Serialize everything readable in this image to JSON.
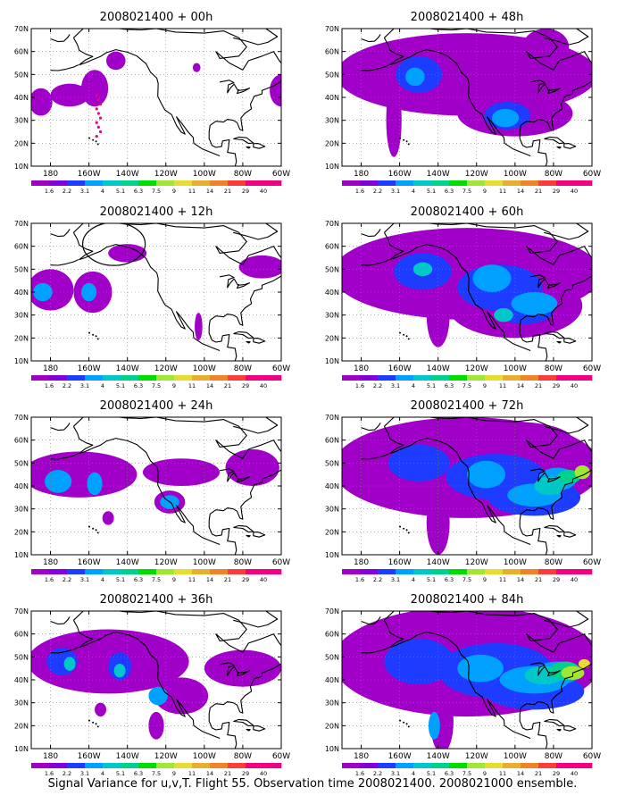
{
  "figure": {
    "caption": "Signal Variance for u,v,T. Flight 55. Observation time 2008021400. 2008021000 ensemble."
  },
  "axes": {
    "lat_ticks": [
      "70N",
      "60N",
      "50N",
      "40N",
      "30N",
      "20N",
      "10N"
    ],
    "lon_ticks": [
      "180",
      "160W",
      "140W",
      "120W",
      "100W",
      "80W",
      "60W"
    ],
    "lat_range": [
      10,
      70
    ],
    "lon_range": [
      -190,
      -60
    ],
    "grid": "dotted"
  },
  "colorbar": {
    "labels": [
      "1.6",
      "2.2",
      "3.1",
      "4",
      "5.1",
      "6.3",
      "7.5",
      "9",
      "11",
      "14",
      "21",
      "29",
      "40"
    ],
    "colors": [
      "#a000c8",
      "#8200dc",
      "#1e3cff",
      "#00a0ff",
      "#00c8c8",
      "#00d28c",
      "#00dc00",
      "#a0e632",
      "#e6dc32",
      "#e6af2d",
      "#f08228",
      "#fa3c3c",
      "#f00082"
    ]
  },
  "panels": [
    {
      "title": "2008021400 + 00h",
      "column": "left",
      "row": 0,
      "circle": false,
      "level": 0
    },
    {
      "title": "2008021400 + 12h",
      "column": "left",
      "row": 1,
      "circle": true,
      "level": 1
    },
    {
      "title": "2008021400 + 24h",
      "column": "left",
      "row": 2,
      "circle": false,
      "level": 2
    },
    {
      "title": "2008021400 + 36h",
      "column": "left",
      "row": 3,
      "circle": false,
      "level": 3
    },
    {
      "title": "2008021400 + 48h",
      "column": "right",
      "row": 0,
      "circle": false,
      "level": 4
    },
    {
      "title": "2008021400 + 60h",
      "column": "right",
      "row": 1,
      "circle": false,
      "level": 5
    },
    {
      "title": "2008021400 + 72h",
      "column": "right",
      "row": 2,
      "circle": false,
      "level": 6
    },
    {
      "title": "2008021400 + 84h",
      "column": "right",
      "row": 3,
      "circle": false,
      "level": 7
    }
  ]
}
